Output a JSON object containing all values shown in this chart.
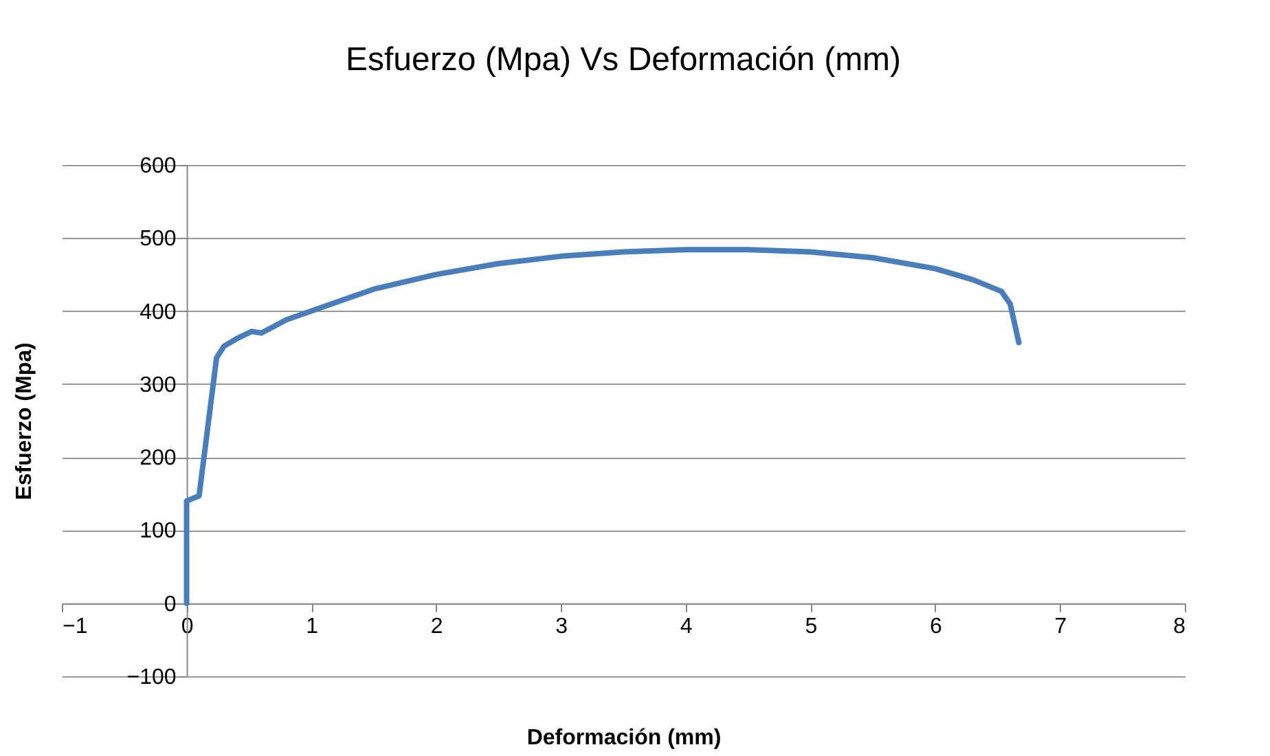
{
  "chart_data": {
    "type": "line",
    "title": "Esfuerzo (Mpa) Vs Deformación (mm)",
    "xlabel": "Deformación (mm)",
    "ylabel": "Esfuerzo (Mpa)",
    "x": [
      0,
      0,
      0.1,
      0.24,
      0.3,
      0.4,
      0.52,
      0.6,
      0.8,
      1.0,
      1.5,
      2,
      2.5,
      3,
      3.5,
      4,
      4.5,
      5,
      5.5,
      6,
      6.3,
      6.53,
      6.6,
      6.67
    ],
    "series": [
      {
        "color": "#4a7ebb",
        "values": [
          0,
          140,
          147,
          336,
          352,
          362,
          372,
          370,
          388,
          400,
          430,
          450,
          465,
          475,
          481,
          484,
          484,
          481,
          473,
          458,
          443,
          427,
          410,
          357
        ]
      }
    ],
    "xlim": [
      -1,
      8
    ],
    "xticks": [
      -1,
      0,
      1,
      2,
      3,
      4,
      5,
      6,
      7,
      8
    ],
    "ylim": [
      -100,
      600
    ],
    "yticks": [
      -100,
      0,
      100,
      200,
      300,
      400,
      500,
      600
    ],
    "grid": "y",
    "marker": "none",
    "line_style": "solid"
  }
}
